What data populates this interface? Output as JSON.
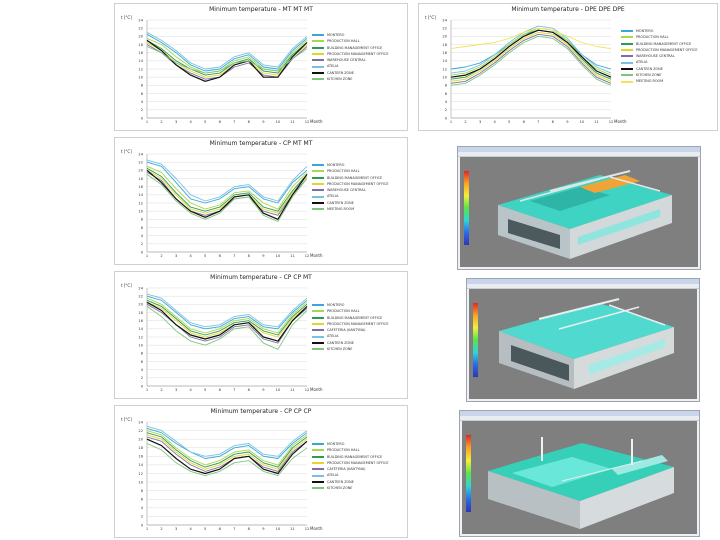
{
  "months": [
    "1",
    "2",
    "3",
    "4",
    "5",
    "6",
    "7",
    "8",
    "9",
    "10",
    "11",
    "12"
  ],
  "y_ticks": [
    "0",
    "2",
    "4",
    "6",
    "8",
    "10",
    "12",
    "14",
    "16",
    "18",
    "20",
    "22",
    "24"
  ],
  "colors": [
    "#3aa7d8",
    "#a7d84a",
    "#2e9b53",
    "#e2d62d",
    "#7c6fa7",
    "#77c2e3",
    "#111111",
    "#7fc57c",
    "#f3e35a"
  ],
  "chart_data": [
    {
      "type": "line",
      "title": "Minimum temperature - MT MT MT",
      "yunit": "t [°C]",
      "xlabel": "Month",
      "ylim": [
        0,
        24
      ],
      "series": [
        {
          "name": "MONTERO",
          "values": [
            20.5,
            18.5,
            16,
            13,
            11.5,
            12,
            14.5,
            15.5,
            12.5,
            12,
            16.5,
            19.5
          ]
        },
        {
          "name": "PRODUCTION HALL",
          "values": [
            19.5,
            18,
            15,
            12.5,
            11,
            11.5,
            14,
            15,
            12,
            11.5,
            16,
            19
          ]
        },
        {
          "name": "BUILDING MANAGEMENT OFFICE",
          "values": [
            19,
            17,
            14,
            12,
            10.5,
            11,
            13.5,
            14.5,
            11.5,
            11,
            15.5,
            18.5
          ]
        },
        {
          "name": "PRODUCTION MANAGEMENT OFFICE",
          "values": [
            18.5,
            16.5,
            13.5,
            11.5,
            10,
            10.5,
            13,
            14,
            11,
            10.5,
            15,
            18
          ]
        },
        {
          "name": "WAREHOUSE CENTRAL",
          "values": [
            18,
            16,
            13,
            11,
            9.5,
            10,
            12.5,
            13.5,
            10.5,
            10,
            14.5,
            17.5
          ]
        },
        {
          "name": "ATELIA",
          "values": [
            21,
            19,
            16.5,
            13.5,
            12,
            12.5,
            15,
            16,
            13,
            12.5,
            17,
            20
          ]
        },
        {
          "name": "CANTEEN ZONE",
          "values": [
            19,
            16.5,
            13,
            10.5,
            9,
            10,
            13,
            14,
            10,
            10,
            15,
            18.5
          ]
        },
        {
          "name": "KITCHEN ZONE",
          "values": [
            17.5,
            16,
            13.5,
            12,
            11,
            11.5,
            13.5,
            14,
            12,
            11.5,
            14.5,
            17
          ]
        }
      ]
    },
    {
      "type": "line",
      "title": "Minimum temperature - DPE DPE DPE",
      "yunit": "t [°C]",
      "xlabel": "Month",
      "ylim": [
        0,
        24
      ],
      "series": [
        {
          "name": "MONTERO",
          "values": [
            12,
            12.5,
            13.5,
            15.5,
            18,
            20.5,
            21.5,
            21,
            19,
            15.5,
            13,
            12
          ]
        },
        {
          "name": "PRODUCTION HALL",
          "values": [
            10.5,
            11,
            12.5,
            15,
            18,
            20.5,
            22,
            21.5,
            19,
            15,
            12,
            10.5
          ]
        },
        {
          "name": "BUILDING MANAGEMENT OFFICE",
          "values": [
            9.5,
            10,
            12,
            14.5,
            17.5,
            20,
            21.5,
            21,
            18.5,
            14.5,
            11,
            9.5
          ]
        },
        {
          "name": "PRODUCTION MANAGEMENT OFFICE",
          "values": [
            9,
            9.5,
            11.5,
            14,
            17,
            19.5,
            21,
            20.5,
            18,
            14,
            10.5,
            9
          ]
        },
        {
          "name": "WAREHOUSE CENTRAL",
          "values": [
            8.5,
            9,
            11,
            13.5,
            16.5,
            19,
            20.5,
            20,
            17.5,
            13.5,
            10,
            8.5
          ]
        },
        {
          "name": "ATELIA",
          "values": [
            11,
            11.5,
            13,
            15.5,
            18.5,
            21,
            22.5,
            22,
            19.5,
            15.5,
            12.5,
            11
          ]
        },
        {
          "name": "CANTEEN ZONE",
          "values": [
            10,
            10.5,
            12,
            14.5,
            17.5,
            20,
            21.5,
            21,
            18.5,
            15,
            11.5,
            10
          ]
        },
        {
          "name": "KITCHEN ZONE",
          "values": [
            8,
            8.5,
            10.5,
            13,
            16,
            18.5,
            20,
            19.5,
            17,
            13,
            9.5,
            8
          ]
        },
        {
          "name": "MEETING ROOM",
          "values": [
            17,
            17.5,
            18,
            18.5,
            19.5,
            21,
            22,
            21.5,
            20,
            18.5,
            17.5,
            17
          ]
        }
      ]
    },
    {
      "type": "line",
      "title": "Minimum temperature - CP MT MT",
      "yunit": "t [°C]",
      "xlabel": "Month",
      "ylim": [
        0,
        24
      ],
      "series": [
        {
          "name": "MONTERO",
          "values": [
            22,
            21,
            17,
            13,
            12,
            13,
            15.5,
            16,
            13,
            12,
            17,
            20
          ]
        },
        {
          "name": "PRODUCTION HALL",
          "values": [
            21,
            19.5,
            15.5,
            12,
            10.5,
            11.5,
            14.5,
            15,
            12,
            10.5,
            16,
            19.5
          ]
        },
        {
          "name": "BUILDING MANAGEMENT OFFICE",
          "values": [
            20.5,
            18.5,
            14.5,
            11,
            10,
            11,
            14,
            14.5,
            11,
            10,
            15,
            19
          ]
        },
        {
          "name": "PRODUCTION MANAGEMENT OFFICE",
          "values": [
            20,
            18,
            14,
            10.5,
            9.5,
            10.5,
            13.5,
            14,
            10.5,
            9.5,
            14.5,
            18.5
          ]
        },
        {
          "name": "WAREHOUSE CENTRAL",
          "values": [
            19.5,
            17.5,
            13,
            10,
            9,
            10,
            13,
            13.5,
            10,
            9,
            14,
            18
          ]
        },
        {
          "name": "ATELIA",
          "values": [
            22.5,
            21.5,
            18,
            14,
            12.5,
            13.5,
            16,
            16.5,
            13.5,
            12.5,
            17.5,
            21
          ]
        },
        {
          "name": "CANTEEN ZONE",
          "values": [
            20,
            17,
            13,
            10,
            8.5,
            10,
            13.5,
            14,
            9.5,
            8,
            14,
            19
          ]
        },
        {
          "name": "MEETING ROOM",
          "values": [
            19,
            16.5,
            12.5,
            9.5,
            8,
            9.5,
            13,
            13.5,
            9,
            7.5,
            13.5,
            18
          ]
        }
      ]
    },
    {
      "type": "line",
      "title": "Minimum temperature - CP CP MT",
      "yunit": "t [°C]",
      "xlabel": "Month",
      "ylim": [
        0,
        24
      ],
      "series": [
        {
          "name": "MONTERO",
          "values": [
            22,
            21,
            18,
            15,
            14,
            14.5,
            16.5,
            17,
            14.5,
            14,
            18,
            21
          ]
        },
        {
          "name": "PRODUCTION HALL",
          "values": [
            21.5,
            20,
            17,
            14,
            13,
            14,
            16,
            16.5,
            14,
            13,
            17.5,
            20.5
          ]
        },
        {
          "name": "BUILDING MANAGEMENT OFFICE",
          "values": [
            21,
            19.5,
            16.5,
            13.5,
            12.5,
            13.5,
            15.5,
            16,
            13.5,
            12.5,
            17,
            20
          ]
        },
        {
          "name": "PRODUCTION MANAGEMENT OFFICE",
          "values": [
            20.5,
            19,
            16,
            13,
            12,
            13,
            15,
            15.5,
            13,
            12,
            16.5,
            19.5
          ]
        },
        {
          "name": "CAFETERIA (KANTYNA)",
          "values": [
            20,
            18,
            15,
            12,
            11,
            12,
            14.5,
            15,
            11.5,
            10.5,
            16,
            19
          ]
        },
        {
          "name": "ATELIA",
          "values": [
            22.5,
            21.5,
            18.5,
            15.5,
            14.5,
            15,
            17,
            17.5,
            15,
            14.5,
            18.5,
            21.5
          ]
        },
        {
          "name": "CANTEEN ZONE",
          "values": [
            20.5,
            18.5,
            15,
            12.5,
            11.5,
            12.5,
            15,
            15.5,
            12,
            11,
            16,
            19.5
          ]
        },
        {
          "name": "KITCHEN ZONE",
          "values": [
            19.5,
            17,
            13.5,
            11,
            10,
            11.5,
            14,
            14.5,
            10.5,
            9,
            15,
            18.5
          ]
        }
      ]
    },
    {
      "type": "line",
      "title": "Minimum temperature - CP CP CP",
      "yunit": "t [°C]",
      "xlabel": "Month",
      "ylim": [
        0,
        24
      ],
      "series": [
        {
          "name": "MONTERO",
          "values": [
            22.5,
            21.5,
            19,
            17,
            15.5,
            16,
            18,
            18.5,
            16,
            15.5,
            19,
            21.5
          ]
        },
        {
          "name": "PRODUCTION HALL",
          "values": [
            22,
            21,
            18,
            15.5,
            14,
            15,
            17,
            17.5,
            15,
            14,
            18.5,
            21
          ]
        },
        {
          "name": "BUILDING MANAGEMENT OFFICE",
          "values": [
            21.5,
            20.5,
            17.5,
            15,
            13.5,
            14.5,
            16.5,
            17,
            14.5,
            13.5,
            18,
            20.5
          ]
        },
        {
          "name": "PRODUCTION MANAGEMENT OFFICE",
          "values": [
            21,
            20,
            17,
            14.5,
            13,
            14,
            16,
            16.5,
            14,
            13,
            17.5,
            20
          ]
        },
        {
          "name": "CAFETERIA (KANTYNA)",
          "values": [
            20.5,
            19.5,
            16.5,
            14,
            12.5,
            13.5,
            15.5,
            16,
            13.5,
            12.5,
            17,
            19.5
          ]
        },
        {
          "name": "ATELIA",
          "values": [
            23,
            22,
            19.5,
            17,
            16,
            16.5,
            18.5,
            19,
            16.5,
            16,
            19.5,
            22
          ]
        },
        {
          "name": "CANTEEN ZONE",
          "values": [
            20,
            18.5,
            15.5,
            13,
            12,
            13,
            15.5,
            16,
            13,
            12,
            16.5,
            19.5
          ]
        },
        {
          "name": "KITCHEN ZONE",
          "values": [
            19,
            17.5,
            14.5,
            12.5,
            11.5,
            12.5,
            14.5,
            15,
            12.5,
            11.5,
            15.5,
            18
          ]
        }
      ]
    }
  ]
}
